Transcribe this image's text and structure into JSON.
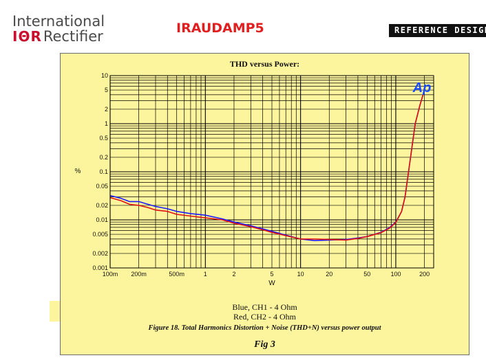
{
  "header": {
    "company_line1": "International",
    "company_logo_text": "IΘR",
    "company_line2": "Rectifier",
    "doc_title": "IRAUDAMP5",
    "reference_label": "REFERENCE DESIGN"
  },
  "colors": {
    "panel_bg": "#fdf59d",
    "series_blue": "#1a1aff",
    "series_red": "#e01010",
    "ap_logo": "#1a4cff"
  },
  "logo": {
    "ap_text": "Ap"
  },
  "chart_data": {
    "type": "line",
    "title": "THD versus Power:",
    "xlabel": "W",
    "ylabel": "%",
    "x_scale": "log",
    "y_scale": "log",
    "xlim": [
      0.1,
      250
    ],
    "ylim": [
      0.001,
      10
    ],
    "grid": true,
    "x_ticks": [
      {
        "v": 0.1,
        "label": "100m"
      },
      {
        "v": 0.2,
        "label": "200m"
      },
      {
        "v": 0.5,
        "label": "500m"
      },
      {
        "v": 1,
        "label": "1"
      },
      {
        "v": 2,
        "label": "2"
      },
      {
        "v": 5,
        "label": "5"
      },
      {
        "v": 10,
        "label": "10"
      },
      {
        "v": 20,
        "label": "20"
      },
      {
        "v": 50,
        "label": "50"
      },
      {
        "v": 100,
        "label": "100"
      },
      {
        "v": 200,
        "label": "200"
      }
    ],
    "y_ticks": [
      {
        "v": 0.001,
        "label": "0.001"
      },
      {
        "v": 0.002,
        "label": "0.002"
      },
      {
        "v": 0.005,
        "label": "0.005"
      },
      {
        "v": 0.01,
        "label": "0.01"
      },
      {
        "v": 0.02,
        "label": "0.02"
      },
      {
        "v": 0.05,
        "label": "0.05"
      },
      {
        "v": 0.1,
        "label": "0.1"
      },
      {
        "v": 0.2,
        "label": "0.2"
      },
      {
        "v": 0.5,
        "label": "0.5"
      },
      {
        "v": 1,
        "label": "1"
      },
      {
        "v": 2,
        "label": "2"
      },
      {
        "v": 5,
        "label": "5"
      },
      {
        "v": 10,
        "label": "10"
      }
    ],
    "series": [
      {
        "name": "Blue, CH1 - 4 Ohm",
        "color": "#1a1aff",
        "points": [
          [
            0.1,
            0.032
          ],
          [
            0.13,
            0.028
          ],
          [
            0.16,
            0.024
          ],
          [
            0.2,
            0.024
          ],
          [
            0.25,
            0.021
          ],
          [
            0.3,
            0.019
          ],
          [
            0.4,
            0.017
          ],
          [
            0.5,
            0.015
          ],
          [
            0.7,
            0.0135
          ],
          [
            1.0,
            0.0125
          ],
          [
            1.5,
            0.0105
          ],
          [
            2.0,
            0.009
          ],
          [
            3.0,
            0.0075
          ],
          [
            4.0,
            0.0065
          ],
          [
            5.0,
            0.0058
          ],
          [
            7.0,
            0.0048
          ],
          [
            10.0,
            0.004
          ],
          [
            14.0,
            0.0037
          ],
          [
            20.0,
            0.0038
          ],
          [
            30.0,
            0.0039
          ],
          [
            40.0,
            0.0042
          ],
          [
            50.0,
            0.0045
          ],
          [
            70.0,
            0.0055
          ],
          [
            85.0,
            0.0068
          ],
          [
            100.0,
            0.009
          ],
          [
            115.0,
            0.015
          ],
          [
            125.0,
            0.03
          ],
          [
            140.0,
            0.15
          ],
          [
            160.0,
            1.0
          ],
          [
            180.0,
            2.5
          ],
          [
            200.0,
            5.0
          ]
        ]
      },
      {
        "name": "Red, CH2 - 4 Ohm",
        "color": "#e01010",
        "points": [
          [
            0.1,
            0.029
          ],
          [
            0.13,
            0.025
          ],
          [
            0.16,
            0.021
          ],
          [
            0.2,
            0.02
          ],
          [
            0.25,
            0.018
          ],
          [
            0.3,
            0.016
          ],
          [
            0.4,
            0.015
          ],
          [
            0.5,
            0.013
          ],
          [
            0.7,
            0.012
          ],
          [
            1.0,
            0.011
          ],
          [
            1.5,
            0.01
          ],
          [
            2.0,
            0.0085
          ],
          [
            3.0,
            0.0072
          ],
          [
            4.0,
            0.0062
          ],
          [
            5.0,
            0.0055
          ],
          [
            7.0,
            0.0047
          ],
          [
            10.0,
            0.004
          ],
          [
            14.0,
            0.004
          ],
          [
            20.0,
            0.0039
          ],
          [
            30.0,
            0.0038
          ],
          [
            40.0,
            0.0041
          ],
          [
            50.0,
            0.0045
          ],
          [
            70.0,
            0.0054
          ],
          [
            85.0,
            0.0066
          ],
          [
            100.0,
            0.0088
          ],
          [
            115.0,
            0.015
          ],
          [
            125.0,
            0.03
          ],
          [
            140.0,
            0.15
          ],
          [
            160.0,
            1.0
          ],
          [
            180.0,
            2.5
          ],
          [
            200.0,
            5.0
          ]
        ]
      }
    ]
  },
  "caption": {
    "legend_blue": "Blue, CH1 - 4 Ohm",
    "legend_red": "Red, CH2 - 4 Ohm",
    "figure_caption": "Figure 18.  Total Harmonics Distortion + Noise (THD+N) versus power output",
    "fig_label": "Fig 3"
  }
}
